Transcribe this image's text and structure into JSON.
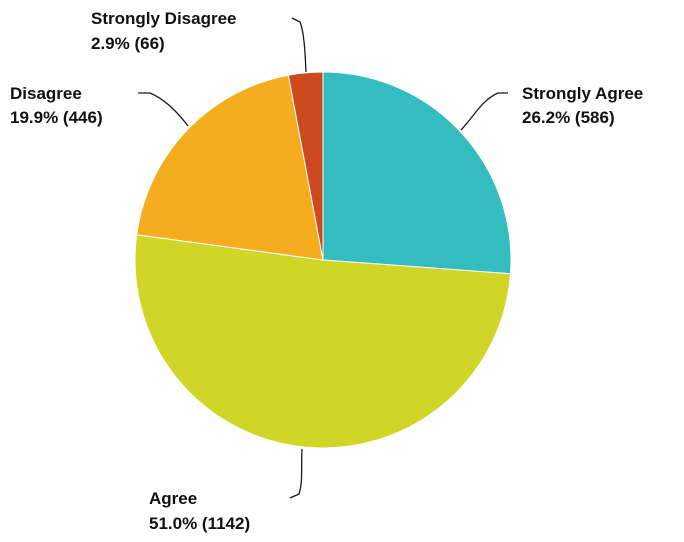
{
  "chart_data": {
    "type": "pie",
    "title": "",
    "start_angle_deg": 0,
    "direction": "clockwise",
    "slices": [
      {
        "label": "Strongly Agree",
        "percent_text": "26.2%",
        "count": 586,
        "display": "26.2% (586)",
        "color": "#33bdbf"
      },
      {
        "label": "Agree",
        "percent_text": "51.0%",
        "count": 1142,
        "display": "51.0% (1142)",
        "color": "#cfd628"
      },
      {
        "label": "Disagree",
        "percent_text": "19.9%",
        "count": 446,
        "display": "19.9% (446)",
        "color": "#f5ad1f"
      },
      {
        "label": "Strongly Disagree",
        "percent_text": "2.9%",
        "count": 66,
        "display": "2.9% (66)",
        "color": "#cc4a1d"
      }
    ],
    "legend": "none"
  }
}
